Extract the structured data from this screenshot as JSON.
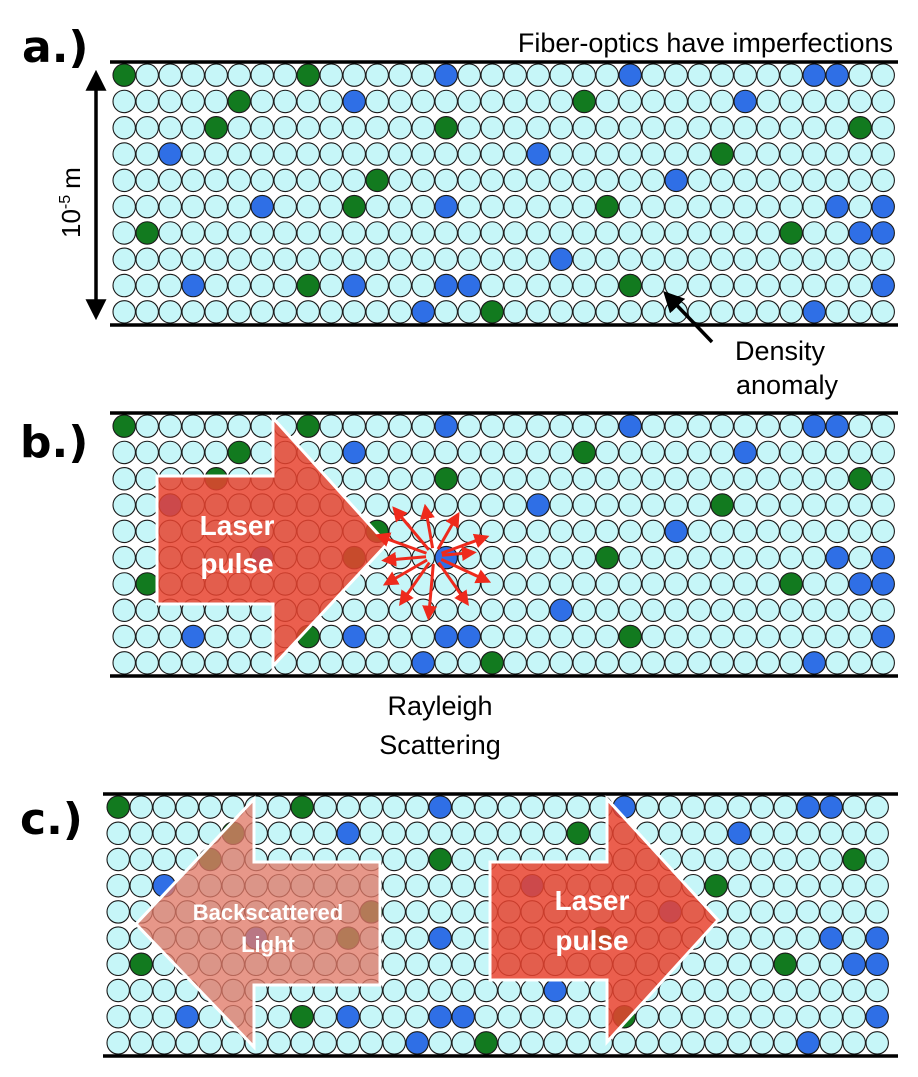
{
  "panels": {
    "a": {
      "label": "a.)",
      "title": "Fiber-optics have imperfections",
      "scale": {
        "base": "10",
        "exponent": "-5",
        "unit": "m"
      },
      "callout": {
        "line1": "Density",
        "line2": "anomaly"
      }
    },
    "b": {
      "label": "b.)",
      "pulse": {
        "line1": "Laser",
        "line2": "pulse"
      },
      "caption": {
        "line1": "Rayleigh",
        "line2": "Scattering"
      }
    },
    "c": {
      "label": "c.)",
      "backscatter": {
        "line1": "Backscattered",
        "line2": "Light"
      },
      "pulse": {
        "line1": "Laser",
        "line2": "pulse"
      }
    }
  },
  "colors": {
    "molecule": "#c6f6f8",
    "anomaly_green": "#127a1f",
    "anomaly_blue": "#2f6fe6",
    "pulse_red": "#e8432f",
    "backscatter_red": "#e07a68",
    "scatter_arrows": "#ee2a1c"
  },
  "icons": {
    "scale_arrow": "double-headed-vertical-arrow",
    "callout_arrow": "pointer-arrow",
    "scatter_arrows": "radial-scatter-arrows"
  }
}
